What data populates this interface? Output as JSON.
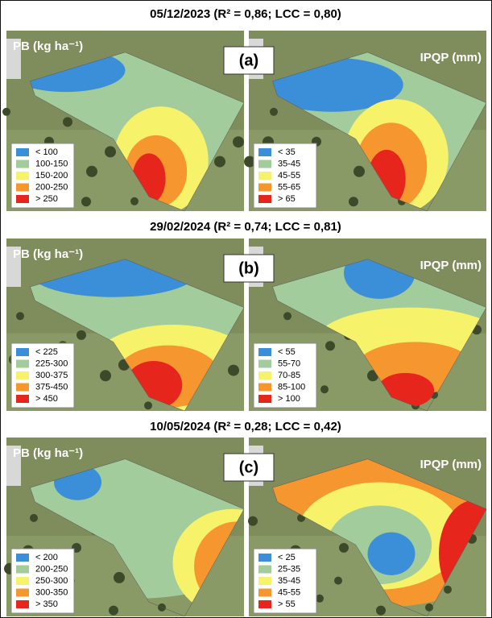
{
  "rows": [
    {
      "title": "05/12/2023 (R² = 0,86; LCC = 0,80)",
      "label": "(a)",
      "left": {
        "title": "PB (kg ha⁻¹)",
        "legend": [
          "< 100",
          "100-150",
          "150-200",
          "200-250",
          "> 250"
        ]
      },
      "right": {
        "title": "IPQP (mm)",
        "legend": [
          "< 35",
          "35-45",
          "45-55",
          "55-65",
          "> 65"
        ]
      }
    },
    {
      "title": "29/02/2024 (R² = 0,74; LCC = 0,81)",
      "label": "(b)",
      "left": {
        "title": "PB (kg ha⁻¹)",
        "legend": [
          "< 225",
          "225-300",
          "300-375",
          "375-450",
          "> 450"
        ]
      },
      "right": {
        "title": "IPQP (mm)",
        "legend": [
          "< 55",
          "55-70",
          "70-85",
          "85-100",
          "> 100"
        ]
      }
    },
    {
      "title": "10/05/2024 (R² = 0,28; LCC = 0,42)",
      "label": "(c)",
      "left": {
        "title": "PB (kg ha⁻¹)",
        "legend": [
          "< 200",
          "200-250",
          "250-300",
          "300-350",
          "> 350"
        ]
      },
      "right": {
        "title": "IPQP (mm)",
        "legend": [
          "< 25",
          "25-35",
          "35-45",
          "45-55",
          "> 55"
        ]
      }
    }
  ]
}
